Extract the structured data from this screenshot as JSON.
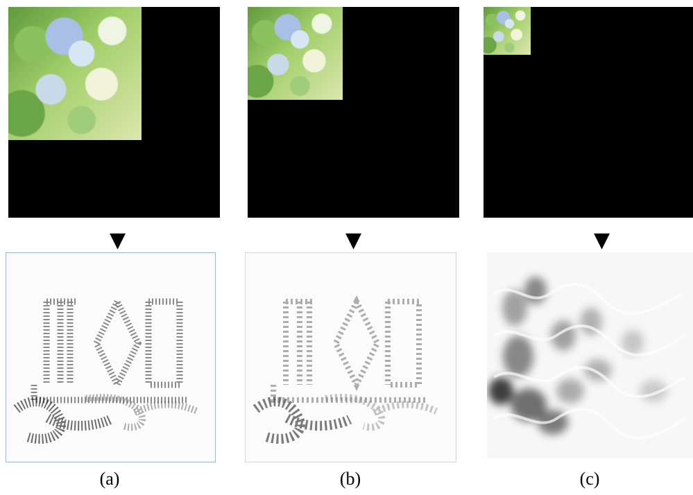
{
  "figure": {
    "panels": [
      {
        "id": "a",
        "label": "(a)",
        "arrow": "▼"
      },
      {
        "id": "b",
        "label": "(b)",
        "arrow": "▼"
      },
      {
        "id": "c",
        "label": "(c)",
        "arrow": "▼"
      }
    ]
  }
}
